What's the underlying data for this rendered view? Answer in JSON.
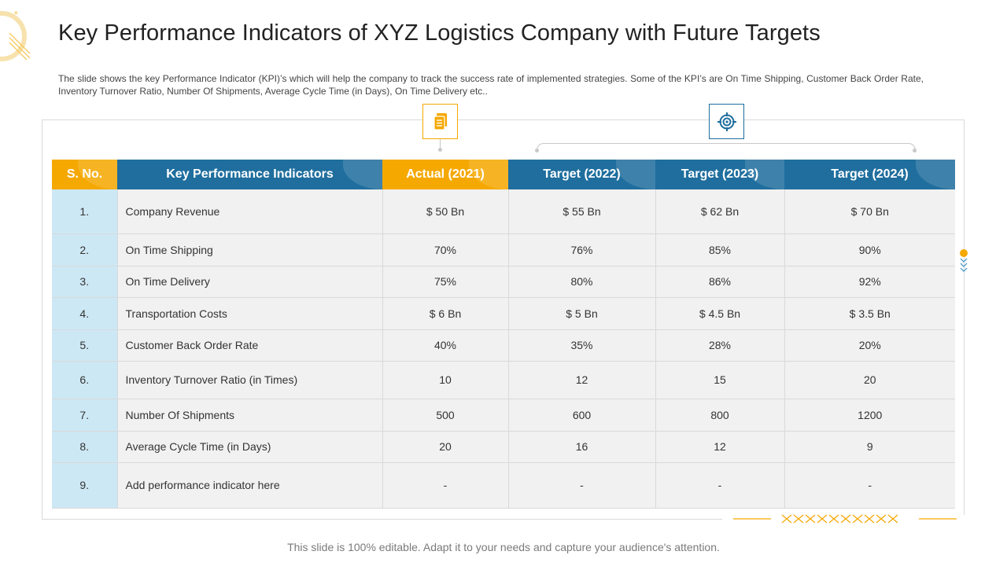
{
  "slide": {
    "title": "Key Performance Indicators of XYZ Logistics Company with Future Targets",
    "description": "The slide shows the key Performance Indicator (KPI)’s which will help the company to track the success rate of implemented strategies. Some of the KPI’s are On Time Shipping, Customer Back Order Rate, Inventory Turnover Ratio, Number Of Shipments, Average Cycle Time (in Days), On Time Delivery etc..",
    "footer": "This slide is 100% editable. Adapt it to your needs and capture your audience's attention."
  },
  "icons": {
    "doc": "document-icon",
    "target": "target-icon"
  },
  "colors": {
    "orange": "#f5a800",
    "blue": "#1f6e9e",
    "light_blue": "#cde8f5",
    "row_bg": "#f1f1f1"
  },
  "table": {
    "headers": [
      "S. No.",
      "Key Performance Indicators",
      "Actual (2021)",
      "Target (2022)",
      "Target (2023)",
      "Target (2024)"
    ],
    "rows": [
      [
        "1.",
        "Company Revenue",
        "$ 50 Bn",
        "$ 55 Bn",
        "$ 62 Bn",
        "$ 70 Bn"
      ],
      [
        "2.",
        "On Time Shipping",
        "70%",
        "76%",
        "85%",
        "90%"
      ],
      [
        "3.",
        "On Time Delivery",
        "75%",
        "80%",
        "86%",
        "92%"
      ],
      [
        "4.",
        "Transportation Costs",
        "$ 6 Bn",
        "$ 5 Bn",
        "$ 4.5 Bn",
        "$ 3.5 Bn"
      ],
      [
        "5.",
        "Customer Back Order Rate",
        "40%",
        "35%",
        "28%",
        "20%"
      ],
      [
        "6.",
        "Inventory Turnover Ratio (in Times)",
        "10",
        "12",
        "15",
        "20"
      ],
      [
        "7.",
        "Number Of Shipments",
        "500",
        "600",
        "800",
        "1200"
      ],
      [
        "8.",
        "Average Cycle Time (in Days)",
        "20",
        "16",
        "12",
        "9"
      ],
      [
        "9.",
        "Add performance indicator here",
        "-",
        "-",
        "-",
        "-"
      ]
    ]
  }
}
